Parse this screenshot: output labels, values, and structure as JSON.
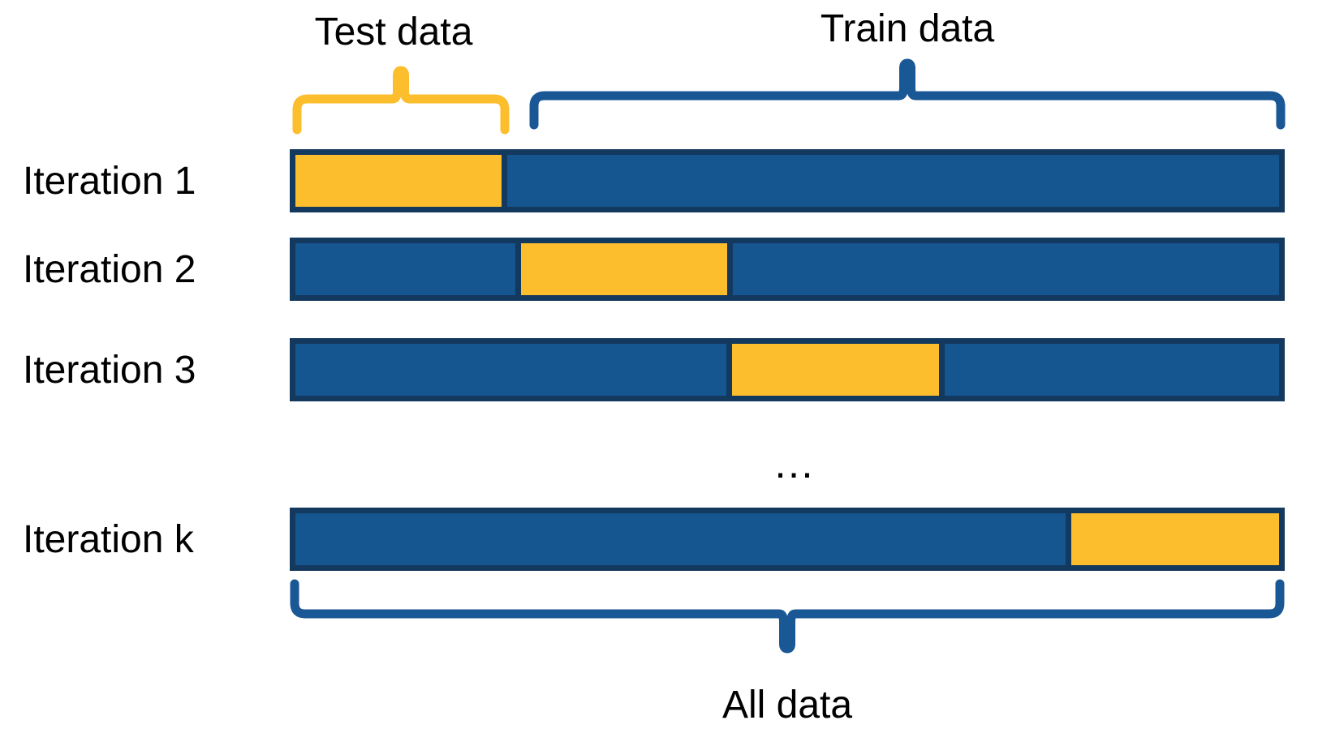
{
  "diagram_type": "k-fold cross-validation",
  "labels": {
    "test_data": "Test data",
    "train_data": "Train data",
    "all_data": "All data",
    "ellipsis": "…"
  },
  "rows": [
    {
      "label": "Iteration 1",
      "test_segment": {
        "left_pct": 0,
        "width_pct": 21.5,
        "borders": "right"
      }
    },
    {
      "label": "Iteration 2",
      "test_segment": {
        "left_pct": 22.4,
        "width_pct": 22.1,
        "borders": "both"
      }
    },
    {
      "label": "Iteration 3",
      "test_segment": {
        "left_pct": 43.8,
        "width_pct": 22.2,
        "borders": "both"
      }
    },
    {
      "label": "Iteration k",
      "test_segment": {
        "left_pct": 78.3,
        "width_pct": 21.7,
        "borders": "left"
      }
    }
  ],
  "colors": {
    "bg": "#FFFFFF",
    "text": "#000000",
    "test_fill": "#FCBE2D",
    "train_fill": "#155590",
    "border": "#14395E",
    "brace_yellow": "#FCBE2D",
    "brace_blue": "#1A5795"
  }
}
